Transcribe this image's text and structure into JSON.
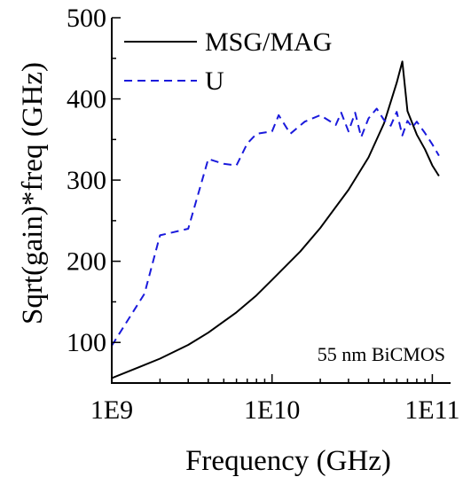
{
  "chart_data": {
    "type": "line",
    "title": "",
    "xlabel": "Frequency (GHz)",
    "ylabel": "Sqrt(gain)*freq (GHz)",
    "x_scale": "log",
    "xlim": [
      1000000000.0,
      130000000000.0
    ],
    "ylim": [
      50,
      500
    ],
    "xticks": [
      {
        "value": 1000000000.0,
        "label": "1E9"
      },
      {
        "value": 10000000000.0,
        "label": "1E10"
      },
      {
        "value": 100000000000.0,
        "label": "1E11"
      }
    ],
    "yticks": [
      {
        "value": 100,
        "label": "100"
      },
      {
        "value": 200,
        "label": "200"
      },
      {
        "value": 300,
        "label": "300"
      },
      {
        "value": 400,
        "label": "400"
      },
      {
        "value": 500,
        "label": "500"
      }
    ],
    "grid": false,
    "legend_position": "top-left",
    "annotation": "55 nm BiCMOS",
    "series": [
      {
        "name": "MSG/MAG",
        "color": "#000000",
        "style": "solid",
        "x": [
          1000000000.0,
          1500000000.0,
          2000000000.0,
          3000000000.0,
          4000000000.0,
          6000000000.0,
          8000000000.0,
          10000000000.0,
          15000000000.0,
          20000000000.0,
          30000000000.0,
          40000000000.0,
          50000000000.0,
          60000000000.0,
          65000000000.0,
          70000000000.0,
          80000000000.0,
          90000000000.0,
          100000000000.0,
          110000000000.0
        ],
        "y": [
          56,
          70,
          80,
          97,
          112,
          137,
          158,
          177,
          212,
          241,
          288,
          328,
          370,
          420,
          446,
          385,
          356,
          338,
          318,
          305
        ]
      },
      {
        "name": "U",
        "color": "#1a1adc",
        "style": "dashed",
        "x": [
          1000000000.0,
          1600000000.0,
          2000000000.0,
          3000000000.0,
          4000000000.0,
          5000000000.0,
          6000000000.0,
          7000000000.0,
          8000000000.0,
          10000000000.0,
          11000000000.0,
          13000000000.0,
          16000000000.0,
          20000000000.0,
          25000000000.0,
          27000000000.0,
          30000000000.0,
          33000000000.0,
          36000000000.0,
          40000000000.0,
          45000000000.0,
          50000000000.0,
          55000000000.0,
          60000000000.0,
          65000000000.0,
          70000000000.0,
          75000000000.0,
          80000000000.0,
          90000000000.0,
          100000000000.0,
          110000000000.0
        ],
        "y": [
          96,
          160,
          232,
          240,
          326,
          320,
          318,
          345,
          357,
          360,
          380,
          357,
          372,
          380,
          368,
          383,
          360,
          383,
          353,
          376,
          388,
          374,
          367,
          384,
          355,
          373,
          365,
          372,
          358,
          344,
          330
        ]
      }
    ]
  }
}
